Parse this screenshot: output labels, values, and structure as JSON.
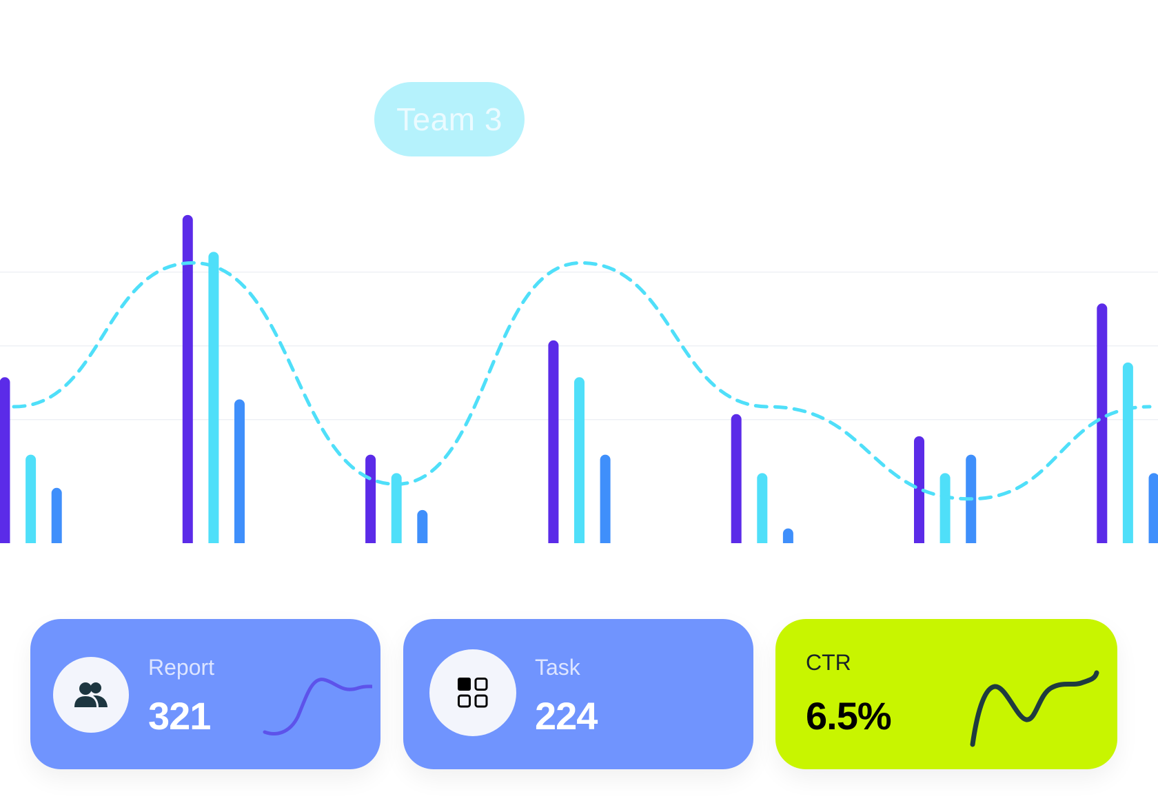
{
  "chart_data": {
    "type": "bar",
    "categories": [
      "",
      "",
      "",
      "",
      "",
      "",
      ""
    ],
    "ylim": [
      0,
      9
    ],
    "grid": true,
    "series": [
      {
        "color": "#5b2be8",
        "values": [
          4.5,
          8.9,
          2.4,
          5.5,
          3.5,
          2.9,
          6.5
        ]
      },
      {
        "color": "#4fdff9",
        "values": [
          2.4,
          7.9,
          1.9,
          4.5,
          1.9,
          1.9,
          4.9
        ]
      },
      {
        "color": "#3f8ffb",
        "values": [
          1.5,
          3.9,
          0.9,
          2.4,
          0.4,
          2.4,
          1.9
        ]
      }
    ],
    "trend_line": {
      "color": "#4fdff9",
      "style": "dashed",
      "values": [
        3.7,
        7.6,
        1.6,
        7.6,
        3.7,
        1.2,
        3.7
      ]
    },
    "tooltip": {
      "label": "Team 3",
      "color": "#b5f2fc"
    }
  },
  "cards": [
    {
      "label": "Report",
      "value": "321",
      "icon": "users-icon",
      "background": "#7094fe",
      "spark_color": "#5b4be8"
    },
    {
      "label": "Task",
      "value": "224",
      "icon": "grid-icon",
      "background": "#7094fe"
    },
    {
      "label": "CTR",
      "value": "6.5%",
      "background": "#c8f500",
      "spark_color": "#1f3b3f"
    }
  ]
}
